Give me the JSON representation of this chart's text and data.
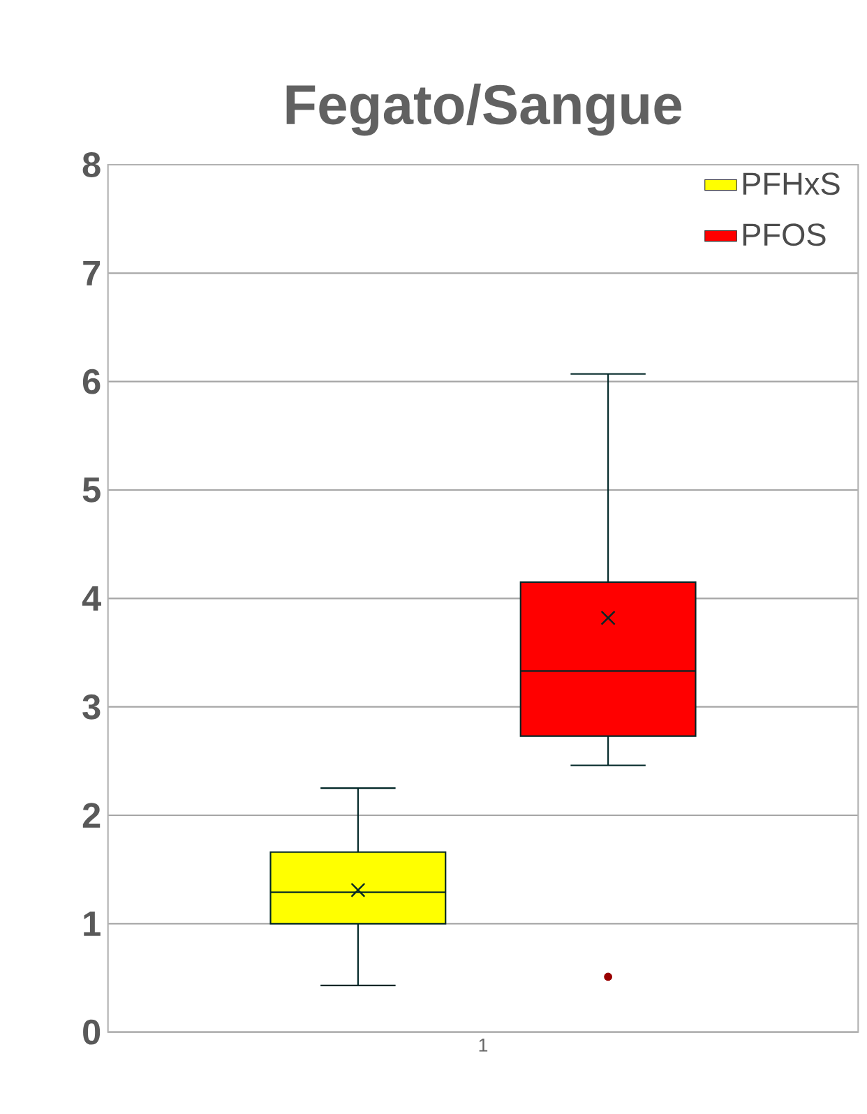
{
  "chart_data": {
    "type": "box",
    "title": "Fegato/Sangue",
    "categories": [
      "1"
    ],
    "series": [
      {
        "name": "PFHxS",
        "color": "#ffff00",
        "boxes": [
          {
            "low": 0.43,
            "q1": 1.0,
            "median": 1.29,
            "q3": 1.66,
            "high": 2.25,
            "mean": 1.31
          }
        ]
      },
      {
        "name": "PFOS",
        "color": "#ff0000",
        "boxes": [
          {
            "low": 2.46,
            "q1": 2.73,
            "median": 3.33,
            "q3": 4.15,
            "high": 6.07,
            "mean": 3.82,
            "outliers": [
              0.51
            ]
          }
        ]
      }
    ],
    "ylim": [
      0,
      8
    ],
    "yticks": [
      0,
      1,
      2,
      3,
      4,
      5,
      6,
      7,
      8
    ],
    "grid": "y",
    "legend": "top right"
  }
}
